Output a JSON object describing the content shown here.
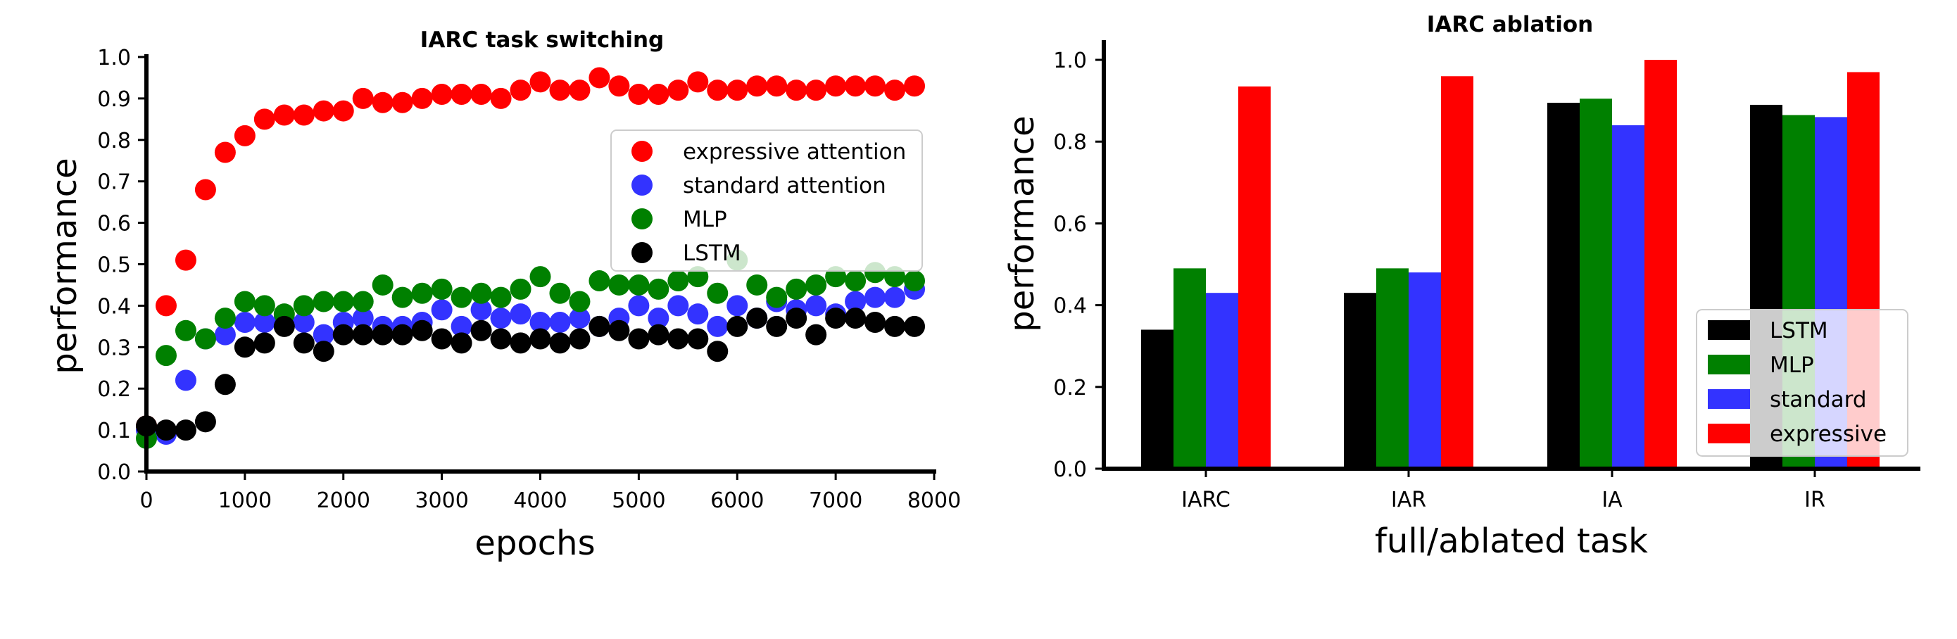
{
  "chart_data": [
    {
      "type": "scatter",
      "title": "IARC task switching",
      "xlabel": "epochs",
      "ylabel": "performance",
      "xlim": [
        0,
        8000
      ],
      "ylim": [
        0,
        1.0
      ],
      "xticks": [
        "0",
        "1000",
        "2000",
        "3000",
        "4000",
        "5000",
        "6000",
        "7000",
        "8000"
      ],
      "yticks": [
        "0.0",
        "0.1",
        "0.2",
        "0.3",
        "0.4",
        "0.5",
        "0.6",
        "0.7",
        "0.8",
        "0.9",
        "1.0"
      ],
      "grid": false,
      "legend_position": "upper right",
      "x": [
        0,
        200,
        400,
        600,
        800,
        1000,
        1200,
        1400,
        1600,
        1800,
        2000,
        2200,
        2400,
        2600,
        2800,
        3000,
        3200,
        3400,
        3600,
        3800,
        4000,
        4200,
        4400,
        4600,
        4800,
        5000,
        5200,
        5400,
        5600,
        5800,
        6000,
        6200,
        6400,
        6600,
        6800,
        7000,
        7200,
        7400,
        7600,
        7800
      ],
      "series": [
        {
          "name": "expressive attention",
          "color": "#ff0000",
          "values": [
            0.11,
            0.4,
            0.51,
            0.68,
            0.77,
            0.81,
            0.85,
            0.86,
            0.86,
            0.87,
            0.87,
            0.9,
            0.89,
            0.89,
            0.9,
            0.91,
            0.91,
            0.91,
            0.9,
            0.92,
            0.94,
            0.92,
            0.92,
            0.95,
            0.93,
            0.91,
            0.91,
            0.92,
            0.94,
            0.92,
            0.92,
            0.93,
            0.93,
            0.92,
            0.92,
            0.93,
            0.93,
            0.93,
            0.92,
            0.93
          ]
        },
        {
          "name": "standard attention",
          "color": "#3333ff",
          "values": [
            0.1,
            0.09,
            0.22,
            0.32,
            0.33,
            0.36,
            0.36,
            0.37,
            0.36,
            0.33,
            0.36,
            0.37,
            0.35,
            0.35,
            0.36,
            0.39,
            0.35,
            0.39,
            0.37,
            0.38,
            0.36,
            0.36,
            0.37,
            0.35,
            0.37,
            0.4,
            0.37,
            0.4,
            0.38,
            0.35,
            0.4,
            0.37,
            0.41,
            0.39,
            0.4,
            0.38,
            0.41,
            0.42,
            0.42,
            0.44
          ]
        },
        {
          "name": "MLP",
          "color": "#008000",
          "values": [
            0.08,
            0.28,
            0.34,
            0.32,
            0.37,
            0.41,
            0.4,
            0.38,
            0.4,
            0.41,
            0.41,
            0.41,
            0.45,
            0.42,
            0.43,
            0.44,
            0.42,
            0.43,
            0.42,
            0.44,
            0.47,
            0.43,
            0.41,
            0.46,
            0.45,
            0.45,
            0.44,
            0.46,
            0.47,
            0.43,
            0.51,
            0.45,
            0.42,
            0.44,
            0.45,
            0.47,
            0.46,
            0.48,
            0.47,
            0.46
          ]
        },
        {
          "name": "LSTM",
          "color": "#000000",
          "values": [
            0.11,
            0.1,
            0.1,
            0.12,
            0.21,
            0.3,
            0.31,
            0.35,
            0.31,
            0.29,
            0.33,
            0.33,
            0.33,
            0.33,
            0.34,
            0.32,
            0.31,
            0.34,
            0.32,
            0.31,
            0.32,
            0.31,
            0.32,
            0.35,
            0.34,
            0.32,
            0.33,
            0.32,
            0.32,
            0.29,
            0.35,
            0.37,
            0.35,
            0.37,
            0.33,
            0.37,
            0.37,
            0.36,
            0.35,
            0.35
          ]
        }
      ]
    },
    {
      "type": "bar",
      "title": "IARC ablation",
      "xlabel": "full/ablated task",
      "ylabel": "performance",
      "ylim": [
        0,
        1.05
      ],
      "yticks": [
        "0.0",
        "0.2",
        "0.4",
        "0.6",
        "0.8",
        "1.0"
      ],
      "grid": false,
      "legend_position": "lower right",
      "categories": [
        "IARC",
        "IAR",
        "IA",
        "IR"
      ],
      "series": [
        {
          "name": "LSTM",
          "color": "#000000",
          "values": [
            0.34,
            0.43,
            0.895,
            0.89
          ]
        },
        {
          "name": "MLP",
          "color": "#008000",
          "values": [
            0.49,
            0.49,
            0.905,
            0.865
          ]
        },
        {
          "name": "standard",
          "color": "#3333ff",
          "values": [
            0.43,
            0.48,
            0.84,
            0.86
          ]
        },
        {
          "name": "expressive",
          "color": "#ff0000",
          "values": [
            0.935,
            0.96,
            1.0,
            0.97
          ]
        }
      ]
    }
  ]
}
